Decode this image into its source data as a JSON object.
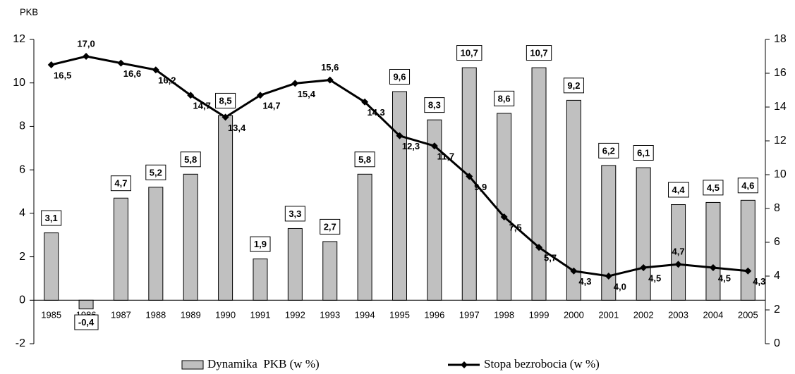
{
  "chart_data": {
    "type": "bar",
    "y_label": "PKB",
    "categories": [
      "1985",
      "1986",
      "1987",
      "1988",
      "1989",
      "1990",
      "1991",
      "1992",
      "1993",
      "1994",
      "1995",
      "1996",
      "1997",
      "1998",
      "1999",
      "2000",
      "2001",
      "2002",
      "2003",
      "2004",
      "2005"
    ],
    "series": [
      {
        "name": "Dynamika  PKB (w %)",
        "type": "bar",
        "color": "#c0c0c0",
        "values": [
          3.1,
          -0.4,
          4.7,
          5.2,
          5.8,
          8.5,
          1.9,
          3.3,
          2.7,
          5.8,
          9.6,
          8.3,
          10.7,
          8.6,
          10.7,
          9.2,
          6.2,
          6.1,
          4.4,
          4.5,
          4.6
        ],
        "value_labels": [
          "3,1",
          "-0,4",
          "4,7",
          "5,2",
          "5,8",
          "8,5",
          "1,9",
          "3,3",
          "2,7",
          "5,8",
          "9,6",
          "8,3",
          "10,7",
          "8,6",
          "10,7",
          "9,2",
          "6,2",
          "6,1",
          "4,4",
          "4,5",
          "4,6"
        ]
      },
      {
        "name": "Stopa bezrobocia (w %)",
        "type": "line",
        "axis": "y2",
        "color": "#000000",
        "values": [
          16.5,
          17.0,
          16.6,
          16.2,
          14.7,
          13.4,
          14.7,
          15.4,
          15.6,
          14.3,
          12.3,
          11.7,
          9.9,
          7.5,
          5.7,
          4.3,
          4.0,
          4.5,
          4.7,
          4.5,
          4.3
        ],
        "value_labels": [
          "16,5",
          "17,0",
          "16,6",
          "16,2",
          "14,7",
          "13,4",
          "14,7",
          "15,4",
          "15,6",
          "14,3",
          "12,3",
          "11,7",
          "9,9",
          "7,5",
          "5,7",
          "4,3",
          "4,0",
          "4,5",
          "4,7",
          "4,5",
          "4,3"
        ]
      }
    ],
    "ylim": [
      -2,
      12
    ],
    "yticks": [
      -2,
      0,
      2,
      4,
      6,
      8,
      10,
      12
    ],
    "y2lim": [
      0,
      18
    ],
    "y2ticks": [
      0,
      2,
      4,
      6,
      8,
      10,
      12,
      14,
      16,
      18
    ],
    "legend": "bottom"
  }
}
